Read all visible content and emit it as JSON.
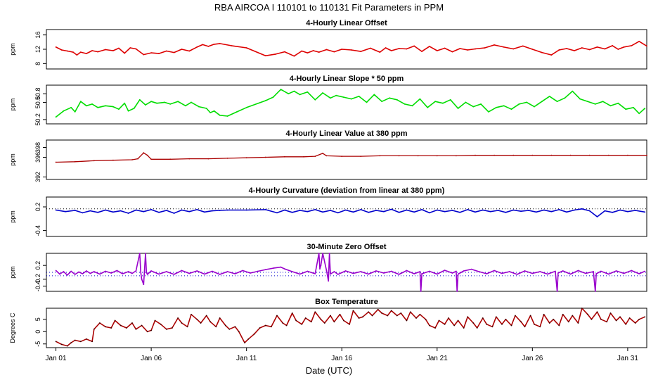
{
  "title": "RBA   AIRCOA I   110101 to 110131   Fit Parameters in PPM",
  "xlabel": "Date (UTC)",
  "x_ticks": [
    "Jan 01",
    "Jan 06",
    "Jan 11",
    "Jan 16",
    "Jan 21",
    "Jan 26",
    "Jan 31"
  ],
  "x_tick_days": [
    1,
    6,
    11,
    16,
    21,
    26,
    31
  ],
  "xlim": [
    0.5,
    32.0
  ],
  "colors": {
    "offset": "#dd0000",
    "slope": "#00dd00",
    "value": "#aa0000",
    "curvature": "#0000cc",
    "zero": "#9900cc",
    "box": "#aa0000"
  },
  "chart_data": [
    {
      "id": "offset",
      "type": "line",
      "title": "4-Hourly Linear Offset",
      "ylabel": "ppm",
      "yticks": [
        "8",
        "12",
        "16"
      ],
      "ytick_values": [
        8,
        12,
        16
      ],
      "ylim": [
        6.5,
        17.5
      ],
      "x": [
        1.0,
        1.3,
        1.6,
        1.9,
        2.1,
        2.3,
        2.6,
        2.9,
        3.2,
        3.6,
        4.0,
        4.3,
        4.6,
        4.9,
        5.2,
        5.6,
        6.0,
        6.4,
        6.8,
        7.2,
        7.6,
        8.0,
        8.4,
        8.7,
        9.0,
        9.3,
        9.6,
        10.2,
        11.0,
        12.0,
        12.5,
        13.0,
        13.5,
        13.9,
        14.2,
        14.5,
        14.8,
        15.2,
        15.6,
        16.0,
        16.5,
        17.0,
        17.5,
        18.0,
        18.3,
        18.6,
        19.0,
        19.4,
        19.8,
        20.2,
        20.6,
        21.0,
        21.4,
        21.8,
        22.2,
        22.6,
        23.0,
        23.5,
        24.0,
        24.5,
        25.0,
        25.5,
        26.0,
        26.5,
        27.0,
        27.4,
        27.8,
        28.2,
        28.6,
        29.0,
        29.4,
        29.8,
        30.2,
        30.5,
        30.8,
        31.2,
        31.6,
        32.0
      ],
      "values": [
        12.6,
        11.8,
        11.5,
        11.2,
        10.4,
        11.2,
        10.8,
        11.6,
        11.3,
        11.9,
        11.6,
        12.3,
        10.9,
        12.4,
        12.1,
        10.5,
        11.0,
        10.8,
        11.5,
        11.1,
        12.0,
        11.5,
        12.6,
        13.3,
        12.8,
        13.4,
        13.6,
        13.0,
        12.4,
        10.2,
        10.6,
        11.3,
        10.1,
        11.5,
        11.0,
        11.6,
        11.2,
        11.9,
        11.3,
        12.0,
        11.8,
        11.4,
        12.3,
        11.2,
        12.4,
        11.6,
        12.2,
        12.1,
        12.9,
        11.4,
        12.8,
        11.6,
        12.3,
        11.3,
        12.2,
        11.8,
        12.1,
        12.4,
        13.2,
        12.6,
        12.1,
        12.9,
        12.0,
        11.1,
        10.4,
        11.8,
        12.2,
        11.6,
        12.4,
        11.9,
        12.6,
        12.1,
        13.0,
        12.0,
        12.6,
        13.0,
        14.2,
        12.9
      ]
    },
    {
      "id": "slope",
      "type": "line",
      "title": "4-Hourly Linear Slope * 50 ppm",
      "ylabel": "ppm",
      "yticks": [
        "50.2",
        "50.6",
        "50.8"
      ],
      "ytick_values": [
        50.2,
        50.6,
        50.8
      ],
      "ylim": [
        50.1,
        51.0
      ],
      "x": [
        1.0,
        1.4,
        1.8,
        2.0,
        2.3,
        2.6,
        2.9,
        3.2,
        3.6,
        4.0,
        4.3,
        4.6,
        4.8,
        5.1,
        5.4,
        5.7,
        6.0,
        6.3,
        6.7,
        7.0,
        7.4,
        7.8,
        8.1,
        8.5,
        8.9,
        9.1,
        9.3,
        9.6,
        10.0,
        10.5,
        11.0,
        12.0,
        12.4,
        12.8,
        13.2,
        13.5,
        13.8,
        14.2,
        14.6,
        15.0,
        15.4,
        15.7,
        16.1,
        16.5,
        16.9,
        17.3,
        17.7,
        18.1,
        18.5,
        18.9,
        19.3,
        19.7,
        20.1,
        20.5,
        20.9,
        21.3,
        21.7,
        22.1,
        22.5,
        22.9,
        23.3,
        23.7,
        24.1,
        24.5,
        24.9,
        25.3,
        25.7,
        26.1,
        26.5,
        26.9,
        27.3,
        27.7,
        28.1,
        28.5,
        28.9,
        29.3,
        29.7,
        30.1,
        30.5,
        30.9,
        31.3,
        31.6,
        31.9
      ],
      "values": [
        50.26,
        50.4,
        50.48,
        50.38,
        50.62,
        50.52,
        50.56,
        50.48,
        50.52,
        50.5,
        50.44,
        50.58,
        50.4,
        50.46,
        50.66,
        50.54,
        50.62,
        50.58,
        50.6,
        50.56,
        50.62,
        50.52,
        50.6,
        50.5,
        50.46,
        50.36,
        50.4,
        50.3,
        50.28,
        50.38,
        50.48,
        50.64,
        50.72,
        50.9,
        50.8,
        50.86,
        50.78,
        50.84,
        50.66,
        50.82,
        50.7,
        50.76,
        50.72,
        50.68,
        50.74,
        50.6,
        50.78,
        50.62,
        50.7,
        50.66,
        50.56,
        50.52,
        50.68,
        50.48,
        50.62,
        50.58,
        50.66,
        50.46,
        50.6,
        50.5,
        50.56,
        50.38,
        50.48,
        50.52,
        50.44,
        50.56,
        50.6,
        50.5,
        50.62,
        50.74,
        50.62,
        50.7,
        50.86,
        50.68,
        50.62,
        50.56,
        50.62,
        50.52,
        50.58,
        50.44,
        50.48,
        50.34,
        50.46
      ]
    },
    {
      "id": "value",
      "type": "line",
      "title": "4-Hourly Linear Value at 380 ppm",
      "ylabel": "ppm",
      "yticks": [
        "392",
        "396",
        "398"
      ],
      "ytick_values": [
        392,
        396,
        398
      ],
      "ylim": [
        391.5,
        399.5
      ],
      "x": [
        1.0,
        2.0,
        3.0,
        4.0,
        5.0,
        5.3,
        5.6,
        5.8,
        6.0,
        7.0,
        8.0,
        9.0,
        10.0,
        11.0,
        12.0,
        13.0,
        14.0,
        14.6,
        15.0,
        15.2,
        16.0,
        17.0,
        18.0,
        19.0,
        20.0,
        21.0,
        22.0,
        23.0,
        24.0,
        25.0,
        26.0,
        27.0,
        28.0,
        29.0,
        30.0,
        31.0,
        32.0
      ],
      "values": [
        395.0,
        395.1,
        395.3,
        395.4,
        395.5,
        395.7,
        396.9,
        396.4,
        395.6,
        395.6,
        395.7,
        395.7,
        395.8,
        395.9,
        396.0,
        396.1,
        396.1,
        396.2,
        396.8,
        396.3,
        396.2,
        396.2,
        396.3,
        396.3,
        396.3,
        396.3,
        396.3,
        396.4,
        396.4,
        396.4,
        396.4,
        396.4,
        396.4,
        396.4,
        396.4,
        396.4,
        396.4
      ]
    },
    {
      "id": "curvature",
      "type": "line",
      "title": "4-Hourly Curvature (deviation from linear at 380 ppm)",
      "ylabel": "ppm",
      "yticks": [
        "-0.4",
        "0.2"
      ],
      "ytick_values": [
        -0.4,
        0.2
      ],
      "ylim": [
        -0.55,
        0.45
      ],
      "reference_line": 0.15,
      "x": [
        1.0,
        1.5,
        2.0,
        2.4,
        2.8,
        3.2,
        3.6,
        4.0,
        4.4,
        4.8,
        5.2,
        5.6,
        6.0,
        6.4,
        6.8,
        7.2,
        7.6,
        8.0,
        8.4,
        8.8,
        9.2,
        9.6,
        10.0,
        11.0,
        12.0,
        12.6,
        13.0,
        13.4,
        13.8,
        14.2,
        14.6,
        15.0,
        15.4,
        15.8,
        16.2,
        16.6,
        17.0,
        17.4,
        17.8,
        18.2,
        18.6,
        19.0,
        19.4,
        19.8,
        20.2,
        20.6,
        21.0,
        21.4,
        21.8,
        22.2,
        22.6,
        23.0,
        23.4,
        23.8,
        24.2,
        24.6,
        25.0,
        25.4,
        25.8,
        26.2,
        26.6,
        27.0,
        27.4,
        27.8,
        28.2,
        28.6,
        29.0,
        29.4,
        29.8,
        30.2,
        30.6,
        31.0,
        31.4,
        31.9
      ],
      "values": [
        0.12,
        0.08,
        0.11,
        0.05,
        0.1,
        0.06,
        0.12,
        0.07,
        0.1,
        0.04,
        0.12,
        0.08,
        0.13,
        0.06,
        0.11,
        0.04,
        0.12,
        0.08,
        0.13,
        0.07,
        0.1,
        0.11,
        0.12,
        0.12,
        0.13,
        0.05,
        0.12,
        0.06,
        0.11,
        0.08,
        0.13,
        0.07,
        0.11,
        0.05,
        0.12,
        0.07,
        0.13,
        0.06,
        0.11,
        0.08,
        0.14,
        0.06,
        0.12,
        0.07,
        0.13,
        0.05,
        0.12,
        0.08,
        0.11,
        0.06,
        0.13,
        0.07,
        0.12,
        0.08,
        0.11,
        0.06,
        0.12,
        0.09,
        0.11,
        0.07,
        0.12,
        0.08,
        0.13,
        0.07,
        0.12,
        0.15,
        0.1,
        -0.05,
        0.1,
        0.06,
        0.12,
        0.08,
        0.11,
        0.07
      ]
    },
    {
      "id": "zero",
      "type": "line",
      "title": "30-Minute Zero Offset",
      "ylabel": "ppm",
      "yticks": [
        "-0.4",
        "-0.2",
        "0.2"
      ],
      "ytick_values": [
        -0.4,
        -0.2,
        0.2
      ],
      "ylim": [
        -0.55,
        0.55
      ],
      "reference_lines": [
        0.0,
        -0.1
      ],
      "x": [
        1.0,
        1.2,
        1.4,
        1.6,
        1.8,
        2.0,
        2.2,
        2.4,
        2.6,
        2.8,
        3.0,
        3.3,
        3.6,
        3.9,
        4.2,
        4.5,
        4.8,
        5.0,
        5.2,
        5.4,
        5.45,
        5.5,
        5.6,
        5.7,
        5.75,
        5.8,
        6.0,
        6.4,
        6.8,
        7.2,
        7.6,
        8.0,
        8.4,
        8.8,
        9.2,
        9.6,
        10.0,
        10.4,
        10.8,
        11.2,
        11.6,
        12.0,
        12.4,
        12.8,
        13.0,
        13.4,
        13.8,
        14.2,
        14.6,
        14.8,
        14.85,
        14.9,
        15.0,
        15.2,
        15.3,
        15.35,
        15.4,
        15.6,
        15.8,
        16.2,
        16.6,
        17.0,
        17.4,
        17.8,
        18.2,
        18.6,
        19.0,
        19.4,
        19.8,
        20.1,
        20.15,
        20.2,
        20.6,
        21.0,
        21.4,
        21.8,
        22.0,
        22.05,
        22.1,
        22.4,
        22.8,
        23.2,
        23.6,
        24.0,
        24.4,
        24.8,
        25.2,
        25.6,
        26.0,
        26.4,
        26.8,
        27.2,
        27.3,
        27.35,
        27.6,
        28.0,
        28.4,
        28.8,
        29.2,
        29.3,
        29.35,
        29.6,
        30.0,
        30.4,
        30.8,
        31.2,
        31.6,
        31.9
      ],
      "values": [
        0.05,
        -0.05,
        0.02,
        -0.08,
        0.03,
        -0.06,
        0.01,
        -0.04,
        0.04,
        -0.03,
        0.02,
        -0.05,
        0.03,
        -0.02,
        0.05,
        -0.04,
        0.02,
        -0.03,
        0.04,
        0.55,
        0.0,
        -0.2,
        -0.35,
        0.55,
        0.0,
        -0.06,
        0.04,
        -0.05,
        0.02,
        -0.06,
        0.05,
        -0.03,
        0.04,
        -0.05,
        0.03,
        -0.06,
        0.02,
        -0.04,
        0.05,
        -0.02,
        0.03,
        0.08,
        0.12,
        0.15,
        0.1,
        0.02,
        -0.05,
        0.03,
        -0.04,
        0.55,
        0.1,
        0.2,
        0.55,
        0.05,
        -0.25,
        0.55,
        -0.05,
        0.02,
        -0.06,
        0.04,
        -0.03,
        0.02,
        -0.05,
        0.04,
        -0.02,
        0.03,
        -0.06,
        0.05,
        -0.04,
        0.02,
        -0.55,
        -0.04,
        0.03,
        -0.05,
        0.06,
        -0.02,
        0.03,
        -0.55,
        -0.05,
        0.04,
        0.09,
        0.02,
        -0.04,
        0.05,
        -0.03,
        0.02,
        -0.06,
        0.04,
        -0.03,
        0.02,
        -0.05,
        0.03,
        -0.55,
        -0.02,
        0.04,
        -0.05,
        0.05,
        -0.03,
        0.02,
        -0.55,
        -0.04,
        0.03,
        -0.05,
        0.04,
        -0.03,
        0.05,
        -0.04,
        0.03
      ]
    },
    {
      "id": "box",
      "type": "line",
      "title": "Box Temperature",
      "ylabel": "Degrees C",
      "yticks": [
        "-5",
        "0",
        "5"
      ],
      "ytick_values": [
        -5,
        0,
        5
      ],
      "ylim": [
        -6.5,
        9.5
      ],
      "x": [
        1.0,
        1.3,
        1.6,
        1.8,
        2.0,
        2.3,
        2.6,
        2.9,
        3.0,
        3.3,
        3.6,
        3.9,
        4.1,
        4.4,
        4.7,
        5.0,
        5.2,
        5.5,
        5.8,
        6.0,
        6.2,
        6.5,
        6.8,
        7.1,
        7.4,
        7.6,
        7.9,
        8.1,
        8.4,
        8.6,
        8.9,
        9.1,
        9.4,
        9.6,
        9.9,
        10.1,
        10.4,
        10.6,
        10.9,
        11.1,
        11.4,
        11.7,
        12.0,
        12.3,
        12.6,
        12.9,
        13.1,
        13.4,
        13.6,
        13.9,
        14.1,
        14.4,
        14.6,
        14.9,
        15.1,
        15.4,
        15.6,
        15.9,
        16.1,
        16.4,
        16.6,
        16.9,
        17.1,
        17.4,
        17.6,
        17.9,
        18.1,
        18.4,
        18.6,
        18.9,
        19.1,
        19.4,
        19.6,
        19.9,
        20.1,
        20.4,
        20.6,
        20.9,
        21.1,
        21.4,
        21.6,
        21.9,
        22.1,
        22.4,
        22.6,
        22.9,
        23.1,
        23.4,
        23.6,
        23.9,
        24.1,
        24.4,
        24.6,
        24.9,
        25.1,
        25.4,
        25.6,
        25.9,
        26.1,
        26.4,
        26.6,
        26.9,
        27.1,
        27.4,
        27.6,
        27.9,
        28.1,
        28.4,
        28.6,
        28.9,
        29.1,
        29.4,
        29.6,
        29.9,
        30.1,
        30.4,
        30.6,
        30.9,
        31.1,
        31.4,
        31.6,
        31.9
      ],
      "values": [
        -4.0,
        -5.2,
        -5.8,
        -4.5,
        -3.5,
        -4.0,
        -3.0,
        -4.0,
        1.0,
        3.5,
        2.0,
        1.5,
        4.5,
        2.5,
        1.5,
        3.5,
        1.0,
        2.5,
        0.0,
        0.5,
        4.5,
        3.0,
        1.0,
        1.5,
        5.5,
        3.5,
        2.0,
        7.0,
        5.0,
        3.5,
        6.5,
        4.0,
        2.0,
        5.5,
        2.5,
        1.0,
        2.0,
        0.0,
        -4.5,
        -3.0,
        -1.0,
        1.5,
        2.5,
        2.0,
        6.5,
        3.5,
        2.5,
        7.5,
        4.5,
        3.0,
        5.5,
        4.0,
        8.0,
        5.0,
        3.5,
        6.5,
        4.0,
        7.0,
        4.5,
        3.0,
        8.5,
        5.5,
        6.0,
        8.0,
        6.5,
        9.0,
        7.5,
        6.5,
        8.5,
        6.5,
        7.5,
        4.5,
        8.0,
        5.5,
        7.0,
        5.0,
        2.5,
        1.5,
        4.5,
        3.0,
        5.5,
        2.5,
        4.5,
        1.5,
        6.0,
        3.5,
        1.5,
        5.5,
        3.0,
        2.0,
        6.0,
        3.0,
        5.0,
        2.5,
        6.5,
        4.0,
        2.0,
        6.5,
        3.0,
        2.0,
        7.0,
        3.5,
        5.0,
        2.5,
        7.0,
        4.0,
        6.5,
        3.5,
        9.5,
        7.0,
        5.0,
        8.0,
        5.0,
        4.0,
        7.5,
        4.5,
        6.0,
        3.0,
        5.5,
        3.5,
        5.0,
        6.0
      ]
    }
  ]
}
